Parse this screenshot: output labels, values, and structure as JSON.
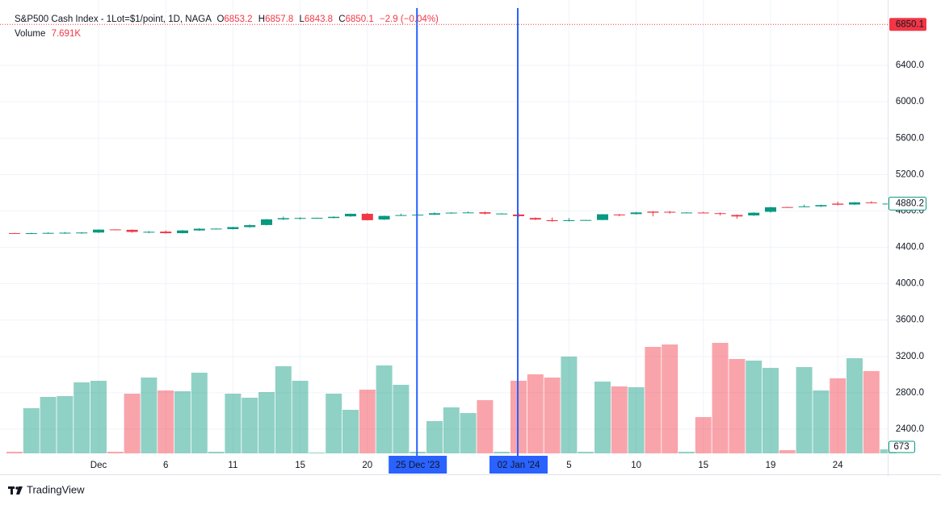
{
  "chart_data": {
    "type": "candlestick",
    "title": "S&P500 Cash Index - 1Lot=$1/point, 1D, NAGA",
    "legend": {
      "o": "O",
      "open": 6853.2,
      "h": "H",
      "high": 6857.8,
      "l": "L",
      "low": 6843.8,
      "c": "C",
      "close": 6850.1,
      "change": "−2.9 (−0.04%)",
      "volume_name": "Volume",
      "volume": "7.691K"
    },
    "last_price": 6850.1,
    "up_color": "#089981",
    "down_color": "#f23645",
    "categories": [
      null,
      null,
      null,
      null,
      null,
      "Dec",
      null,
      null,
      null,
      "6",
      null,
      null,
      null,
      "11",
      null,
      null,
      null,
      "15",
      null,
      null,
      null,
      "20",
      null,
      null,
      "25 Dec '23",
      null,
      null,
      null,
      null,
      null,
      "02 Jan '24",
      null,
      null,
      "5",
      null,
      null,
      null,
      "10",
      null,
      null,
      null,
      "15",
      null,
      null,
      null,
      "19",
      null,
      null,
      null,
      "24",
      null,
      null,
      null
    ],
    "ohlc": [
      [
        4556,
        4558,
        4548,
        4552
      ],
      [
        4552,
        4560,
        4545,
        4555
      ],
      [
        4555,
        4565,
        4550,
        4558
      ],
      [
        4555,
        4568,
        4548,
        4560
      ],
      [
        4556,
        4565,
        4548,
        4562
      ],
      [
        4562,
        4598,
        4558,
        4594
      ],
      [
        4596,
        4598,
        4590,
        4592
      ],
      [
        4592,
        4596,
        4560,
        4569
      ],
      [
        4566,
        4578,
        4555,
        4570
      ],
      [
        4572,
        4585,
        4550,
        4555
      ],
      [
        4555,
        4590,
        4552,
        4585
      ],
      [
        4585,
        4610,
        4580,
        4604
      ],
      [
        4604,
        4608,
        4600,
        4605
      ],
      [
        4600,
        4625,
        4595,
        4622
      ],
      [
        4622,
        4650,
        4615,
        4643
      ],
      [
        4645,
        4712,
        4640,
        4707
      ],
      [
        4707,
        4738,
        4700,
        4720
      ],
      [
        4720,
        4730,
        4705,
        4722
      ],
      [
        4720,
        4726,
        4716,
        4724
      ],
      [
        4722,
        4740,
        4718,
        4735
      ],
      [
        4740,
        4770,
        4735,
        4768
      ],
      [
        4768,
        4778,
        4695,
        4698
      ],
      [
        4705,
        4748,
        4700,
        4745
      ],
      [
        4750,
        4770,
        4745,
        4754
      ],
      [
        4756,
        4762,
        4752,
        4758
      ],
      [
        4758,
        4784,
        4755,
        4774
      ],
      [
        4774,
        4785,
        4770,
        4781
      ],
      [
        4781,
        4793,
        4779,
        4783
      ],
      [
        4785,
        4793,
        4760,
        4770
      ],
      [
        4770,
        4775,
        4766,
        4771
      ],
      [
        4760,
        4775,
        4730,
        4742
      ],
      [
        4722,
        4728,
        4700,
        4705
      ],
      [
        4698,
        4727,
        4680,
        4688
      ],
      [
        4690,
        4720,
        4685,
        4697
      ],
      [
        4697,
        4702,
        4694,
        4700
      ],
      [
        4700,
        4765,
        4698,
        4763
      ],
      [
        4760,
        4766,
        4740,
        4756
      ],
      [
        4765,
        4790,
        4760,
        4783
      ],
      [
        4792,
        4798,
        4740,
        4780
      ],
      [
        4790,
        4800,
        4770,
        4784
      ],
      [
        4780,
        4786,
        4778,
        4782
      ],
      [
        4782,
        4790,
        4775,
        4780
      ],
      [
        4775,
        4782,
        4750,
        4766
      ],
      [
        4755,
        4760,
        4715,
        4739
      ],
      [
        4750,
        4785,
        4745,
        4780
      ],
      [
        4790,
        4845,
        4780,
        4840
      ],
      [
        4842,
        4845,
        4835,
        4840
      ],
      [
        4845,
        4868,
        4840,
        4850
      ],
      [
        4850,
        4868,
        4842,
        4864
      ],
      [
        4880,
        4903,
        4860,
        4868
      ],
      [
        4870,
        4898,
        4865,
        4894
      ],
      [
        4894,
        4906,
        4882,
        4891
      ],
      [
        4879,
        4884,
        4876,
        4880.2
      ]
    ],
    "volume": [
      270,
      7560,
      9450,
      9585,
      11880,
      12150,
      270,
      9990,
      12690,
      10530,
      10395,
      13500,
      270,
      9990,
      9315,
      10260,
      14580,
      12150,
      135,
      9990,
      7290,
      10665,
      14715,
      11475,
      270,
      5400,
      7695,
      6750,
      8910,
      270,
      12150,
      13230,
      12690,
      16200,
      270,
      12015,
      11205,
      11070,
      17820,
      18225,
      270,
      6075,
      18495,
      15795,
      15525,
      14310,
      540,
      14445,
      10530,
      12555,
      15930,
      13770,
      673
    ],
    "ylim": [
      2134,
      7030
    ],
    "yticks": [
      {
        "value": 2400,
        "label": "2400.0"
      },
      {
        "value": 2800,
        "label": "2800.0"
      },
      {
        "value": 3200,
        "label": "3200.0"
      },
      {
        "value": 3600,
        "label": "3600.0"
      },
      {
        "value": 4000,
        "label": "4000.0"
      },
      {
        "value": 4400,
        "label": "4400.0"
      },
      {
        "value": 4800,
        "label": "4800.0"
      },
      {
        "value": 5200,
        "label": "5200.0"
      },
      {
        "value": 5600,
        "label": "5600.0"
      },
      {
        "value": 6000,
        "label": "6000.0"
      },
      {
        "value": 6400,
        "label": "6400.0"
      }
    ],
    "y2lim": [
      0,
      74520
    ],
    "grid": true
  },
  "footer": {
    "brand": "TradingView"
  }
}
